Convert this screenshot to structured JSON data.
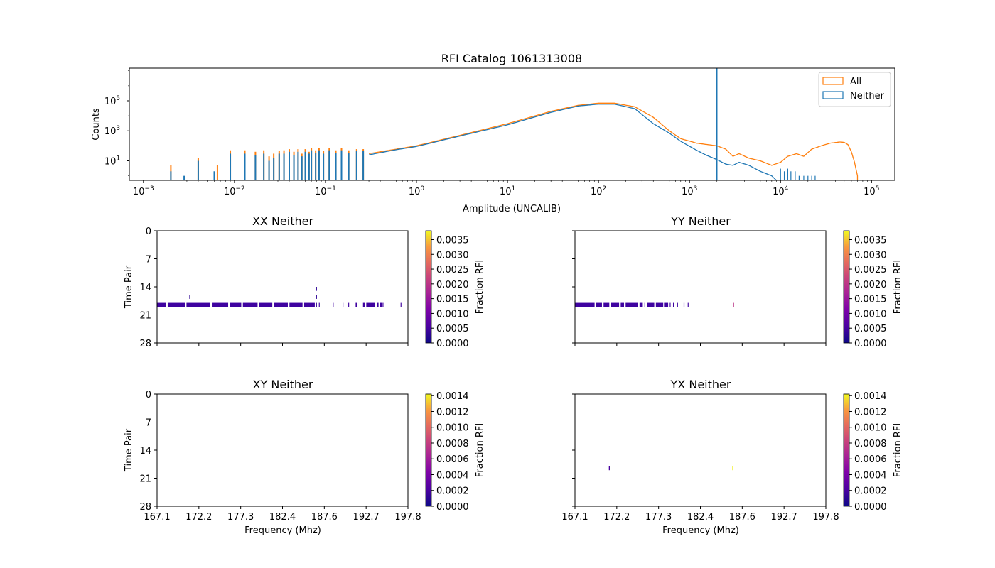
{
  "chart_data": [
    {
      "type": "line",
      "title": "RFI Catalog 1061313008",
      "xlabel": "Amplitude (UNCALIB)",
      "ylabel": "Counts",
      "xscale": "log",
      "yscale": "log",
      "xlim": [
        0.0007,
        180000
      ],
      "ylim": [
        0.5,
        15000000
      ],
      "xticks": [
        {
          "v": 0.001,
          "base": "10",
          "exp": "−3"
        },
        {
          "v": 0.01,
          "base": "10",
          "exp": "−2"
        },
        {
          "v": 0.1,
          "base": "10",
          "exp": "−1"
        },
        {
          "v": 1,
          "base": "10",
          "exp": "0"
        },
        {
          "v": 10,
          "base": "10",
          "exp": "1"
        },
        {
          "v": 100,
          "base": "10",
          "exp": "2"
        },
        {
          "v": 1000,
          "base": "10",
          "exp": "3"
        },
        {
          "v": 10000,
          "base": "10",
          "exp": "4"
        },
        {
          "v": 100000,
          "base": "10",
          "exp": "5"
        }
      ],
      "yticks": [
        {
          "v": 10,
          "base": "10",
          "exp": "1"
        },
        {
          "v": 1000,
          "base": "10",
          "exp": "3"
        },
        {
          "v": 100000,
          "base": "10",
          "exp": "5"
        }
      ],
      "vline": {
        "x": 2000,
        "color": "#1f77b4"
      },
      "legend": {
        "position": "top-right"
      },
      "series": [
        {
          "name": "All",
          "color": "#ff7f0e",
          "curve": [
            [
              0.3,
              30
            ],
            [
              0.6,
              60
            ],
            [
              1,
              100
            ],
            [
              3,
              500
            ],
            [
              10,
              3000
            ],
            [
              30,
              20000
            ],
            [
              60,
              50000
            ],
            [
              100,
              70000
            ],
            [
              150,
              70000
            ],
            [
              250,
              40000
            ],
            [
              400,
              8000
            ],
            [
              600,
              1000
            ],
            [
              800,
              300
            ],
            [
              1200,
              150
            ],
            [
              2000,
              100
            ],
            [
              2500,
              60
            ],
            [
              3000,
              20
            ],
            [
              3500,
              30
            ],
            [
              4500,
              15
            ],
            [
              6000,
              10
            ],
            [
              8000,
              5
            ],
            [
              10000,
              8
            ],
            [
              12000,
              20
            ],
            [
              15000,
              30
            ],
            [
              18000,
              20
            ],
            [
              22000,
              60
            ],
            [
              28000,
              100
            ],
            [
              35000,
              150
            ],
            [
              45000,
              180
            ],
            [
              50000,
              170
            ],
            [
              55000,
              120
            ],
            [
              60000,
              40
            ],
            [
              65000,
              8
            ],
            [
              70000,
              1
            ]
          ],
          "spikes": [
            [
              0.002,
              5
            ],
            [
              0.004,
              15
            ],
            [
              0.0065,
              5
            ],
            [
              0.009,
              50
            ],
            [
              0.013,
              50
            ],
            [
              0.017,
              40
            ],
            [
              0.021,
              50
            ],
            [
              0.024,
              20
            ],
            [
              0.027,
              30
            ],
            [
              0.031,
              45
            ],
            [
              0.035,
              50
            ],
            [
              0.04,
              60
            ],
            [
              0.045,
              40
            ],
            [
              0.05,
              60
            ],
            [
              0.055,
              30
            ],
            [
              0.06,
              60
            ],
            [
              0.066,
              40
            ],
            [
              0.07,
              70
            ],
            [
              0.078,
              50
            ],
            [
              0.085,
              70
            ],
            [
              0.095,
              45
            ],
            [
              0.11,
              70
            ],
            [
              0.13,
              50
            ],
            [
              0.15,
              70
            ],
            [
              0.18,
              50
            ],
            [
              0.22,
              60
            ],
            [
              0.26,
              60
            ]
          ]
        },
        {
          "name": "Neither",
          "color": "#1f77b4",
          "curve": [
            [
              0.3,
              25
            ],
            [
              0.6,
              55
            ],
            [
              1,
              90
            ],
            [
              3,
              450
            ],
            [
              10,
              2500
            ],
            [
              30,
              17000
            ],
            [
              60,
              45000
            ],
            [
              100,
              60000
            ],
            [
              150,
              60000
            ],
            [
              250,
              30000
            ],
            [
              400,
              3000
            ],
            [
              600,
              700
            ],
            [
              800,
              200
            ],
            [
              1200,
              50
            ],
            [
              1500,
              25
            ],
            [
              2000,
              12
            ],
            [
              2500,
              6
            ],
            [
              3000,
              5
            ],
            [
              3500,
              8
            ],
            [
              4500,
              5
            ],
            [
              6000,
              2
            ],
            [
              8000,
              1
            ],
            [
              9000,
              0.5
            ]
          ],
          "spikes": [
            [
              0.002,
              2
            ],
            [
              0.0028,
              1
            ],
            [
              0.004,
              10
            ],
            [
              0.006,
              2
            ],
            [
              0.009,
              30
            ],
            [
              0.013,
              30
            ],
            [
              0.017,
              25
            ],
            [
              0.021,
              30
            ],
            [
              0.024,
              10
            ],
            [
              0.027,
              15
            ],
            [
              0.031,
              30
            ],
            [
              0.035,
              30
            ],
            [
              0.04,
              40
            ],
            [
              0.045,
              25
            ],
            [
              0.05,
              40
            ],
            [
              0.055,
              20
            ],
            [
              0.06,
              40
            ],
            [
              0.066,
              30
            ],
            [
              0.07,
              50
            ],
            [
              0.078,
              35
            ],
            [
              0.085,
              50
            ],
            [
              0.095,
              30
            ],
            [
              0.11,
              50
            ],
            [
              0.13,
              35
            ],
            [
              0.15,
              50
            ],
            [
              0.18,
              35
            ],
            [
              0.22,
              45
            ],
            [
              0.26,
              45
            ]
          ],
          "tail_spikes": [
            [
              10000,
              3
            ],
            [
              11000,
              2
            ],
            [
              12000,
              3
            ],
            [
              13000,
              2
            ],
            [
              14500,
              2
            ],
            [
              16000,
              1
            ],
            [
              18000,
              1
            ],
            [
              20000,
              1
            ],
            [
              22000,
              1
            ],
            [
              24000,
              1
            ]
          ]
        }
      ]
    },
    {
      "type": "heatmap",
      "title": "XX Neither",
      "ylabel": "Time Pair",
      "xlim": [
        167.1,
        197.8
      ],
      "ylim": [
        28,
        0
      ],
      "yticks": [
        "0",
        "7",
        "14",
        "21",
        "28"
      ],
      "xticks_labels_shown": false,
      "colorbar": {
        "label": "Fraction RFI",
        "max": 0.0038,
        "ticks": [
          "0.0000",
          "0.0005",
          "0.0010",
          "0.0015",
          "0.0020",
          "0.0025",
          "0.0030",
          "0.0035"
        ]
      },
      "points": [
        [
          171.1,
          16.5,
          0.0003
        ],
        [
          186.6,
          14.5,
          0.0003
        ],
        [
          186.6,
          16.5,
          0.0003
        ],
        [
          186.6,
          18.5,
          0.0004
        ]
      ],
      "band_row": 18.5,
      "band_segments": [
        [
          167.1,
          168.2
        ],
        [
          168.4,
          170.5
        ],
        [
          170.7,
          173.6
        ],
        [
          173.8,
          175.8
        ],
        [
          176,
          177.4
        ],
        [
          177.6,
          179.4
        ],
        [
          179.6,
          181.2
        ],
        [
          181.4,
          183.1
        ],
        [
          183.3,
          184.9
        ],
        [
          185.1,
          186.4
        ],
        [
          186.9,
          187
        ],
        [
          188.6,
          188.7
        ],
        [
          189.8,
          189.9
        ],
        [
          190.5,
          190.6
        ],
        [
          191.4,
          191.6
        ],
        [
          192.3,
          192.5
        ],
        [
          192.7,
          193.8
        ],
        [
          194,
          194.2
        ],
        [
          194.4,
          194.6
        ],
        [
          194.7,
          194.8
        ],
        [
          196.9,
          197
        ]
      ]
    },
    {
      "type": "heatmap",
      "title": "YY Neither",
      "ylabel": "",
      "xlim": [
        167.1,
        197.8
      ],
      "ylim": [
        28,
        0
      ],
      "yticks": [],
      "xticks_labels_shown": false,
      "colorbar": {
        "label": "Fraction RFI",
        "max": 0.0038,
        "ticks": [
          "0.0000",
          "0.0005",
          "0.0010",
          "0.0015",
          "0.0020",
          "0.0025",
          "0.0030",
          "0.0035"
        ]
      },
      "points": [
        [
          186.5,
          18.5,
          0.002
        ]
      ],
      "band_row": 18.5,
      "band_segments": [
        [
          167.1,
          169.5
        ],
        [
          169.7,
          170.4
        ],
        [
          170.6,
          171.3
        ],
        [
          171.5,
          172.5
        ],
        [
          172.7,
          173.1
        ],
        [
          173.3,
          174.8
        ],
        [
          175,
          175.4
        ],
        [
          175.6,
          175.7
        ],
        [
          175.9,
          176.8
        ],
        [
          177,
          177.9
        ],
        [
          178,
          178.5
        ],
        [
          178.7,
          178.8
        ],
        [
          179.1,
          179.2
        ],
        [
          179.6,
          179.7
        ],
        [
          180.4,
          180.5
        ],
        [
          180.9,
          181
        ]
      ]
    },
    {
      "type": "heatmap",
      "title": "XY Neither",
      "ylabel": "Time Pair",
      "xlabel": "Frequency (Mhz)",
      "xlim": [
        167.1,
        197.8
      ],
      "ylim": [
        28,
        0
      ],
      "xticks": [
        "167.1",
        "172.2",
        "177.3",
        "182.4",
        "187.6",
        "192.7",
        "197.8"
      ],
      "yticks": [
        "0",
        "7",
        "14",
        "21",
        "28"
      ],
      "colorbar": {
        "label": "Fraction RFI",
        "max": 0.00142,
        "ticks": [
          "0.0000",
          "0.0002",
          "0.0004",
          "0.0006",
          "0.0008",
          "0.0010",
          "0.0012",
          "0.0014"
        ]
      },
      "points": []
    },
    {
      "type": "heatmap",
      "title": "YX Neither",
      "ylabel": "",
      "xlabel": "Frequency (Mhz)",
      "xlim": [
        167.1,
        197.8
      ],
      "ylim": [
        28,
        0
      ],
      "xticks": [
        "167.1",
        "172.2",
        "177.3",
        "182.4",
        "187.6",
        "192.7",
        "197.8"
      ],
      "yticks": [],
      "colorbar": {
        "label": "Fraction RFI",
        "max": 0.00142,
        "ticks": [
          "0.0000",
          "0.0002",
          "0.0004",
          "0.0006",
          "0.0008",
          "0.0010",
          "0.0012",
          "0.0014"
        ]
      },
      "points": [
        [
          171.3,
          18.5,
          0.0002
        ],
        [
          186.4,
          18.5,
          0.0014
        ]
      ]
    }
  ]
}
